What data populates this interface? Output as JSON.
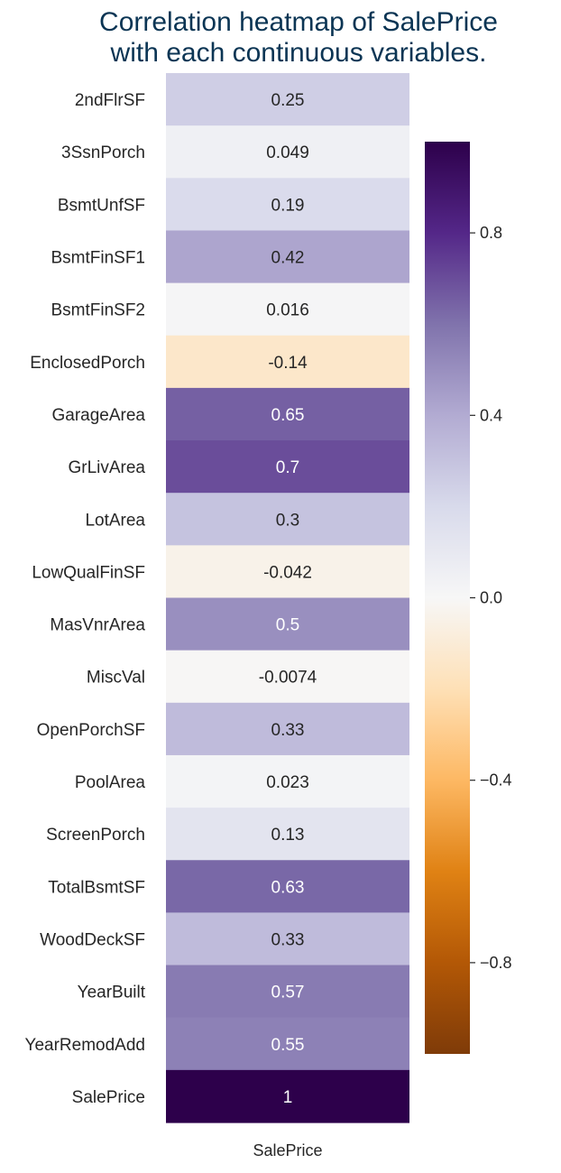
{
  "chart_data": {
    "type": "heatmap",
    "title": "Correlation heatmap of SalePrice\nwith each continuous variables.",
    "rows": [
      "2ndFlrSF",
      "3SsnPorch",
      "BsmtUnfSF",
      "BsmtFinSF1",
      "BsmtFinSF2",
      "EnclosedPorch",
      "GarageArea",
      "GrLivArea",
      "LotArea",
      "LowQualFinSF",
      "MasVnrArea",
      "MiscVal",
      "OpenPorchSF",
      "PoolArea",
      "ScreenPorch",
      "TotalBsmtSF",
      "WoodDeckSF",
      "YearBuilt",
      "YearRemodAdd",
      "SalePrice"
    ],
    "columns": [
      "SalePrice"
    ],
    "values": [
      0.25,
      0.049,
      0.19,
      0.42,
      0.016,
      -0.14,
      0.65,
      0.7,
      0.3,
      -0.042,
      0.5,
      -0.0074,
      0.33,
      0.023,
      0.13,
      0.63,
      0.33,
      0.57,
      0.55,
      1
    ],
    "value_labels": [
      "0.25",
      "0.049",
      "0.19",
      "0.42",
      "0.016",
      "-0.14",
      "0.65",
      "0.7",
      "0.3",
      "-0.042",
      "0.5",
      "-0.0074",
      "0.33",
      "0.023",
      "0.13",
      "0.63",
      "0.33",
      "0.57",
      "0.55",
      "1"
    ],
    "colorbar": {
      "colormap": "PuOr",
      "range": [
        -1,
        1
      ],
      "ticks": [
        0.8,
        0.4,
        0.0,
        -0.4,
        -0.8
      ],
      "tick_labels": [
        "0.8",
        "0.4",
        "0.0",
        "−0.4",
        "−0.8"
      ]
    },
    "colors": {
      "title": "#0b3554",
      "text_dark": "#262626",
      "text_light": "#ffffff"
    }
  }
}
